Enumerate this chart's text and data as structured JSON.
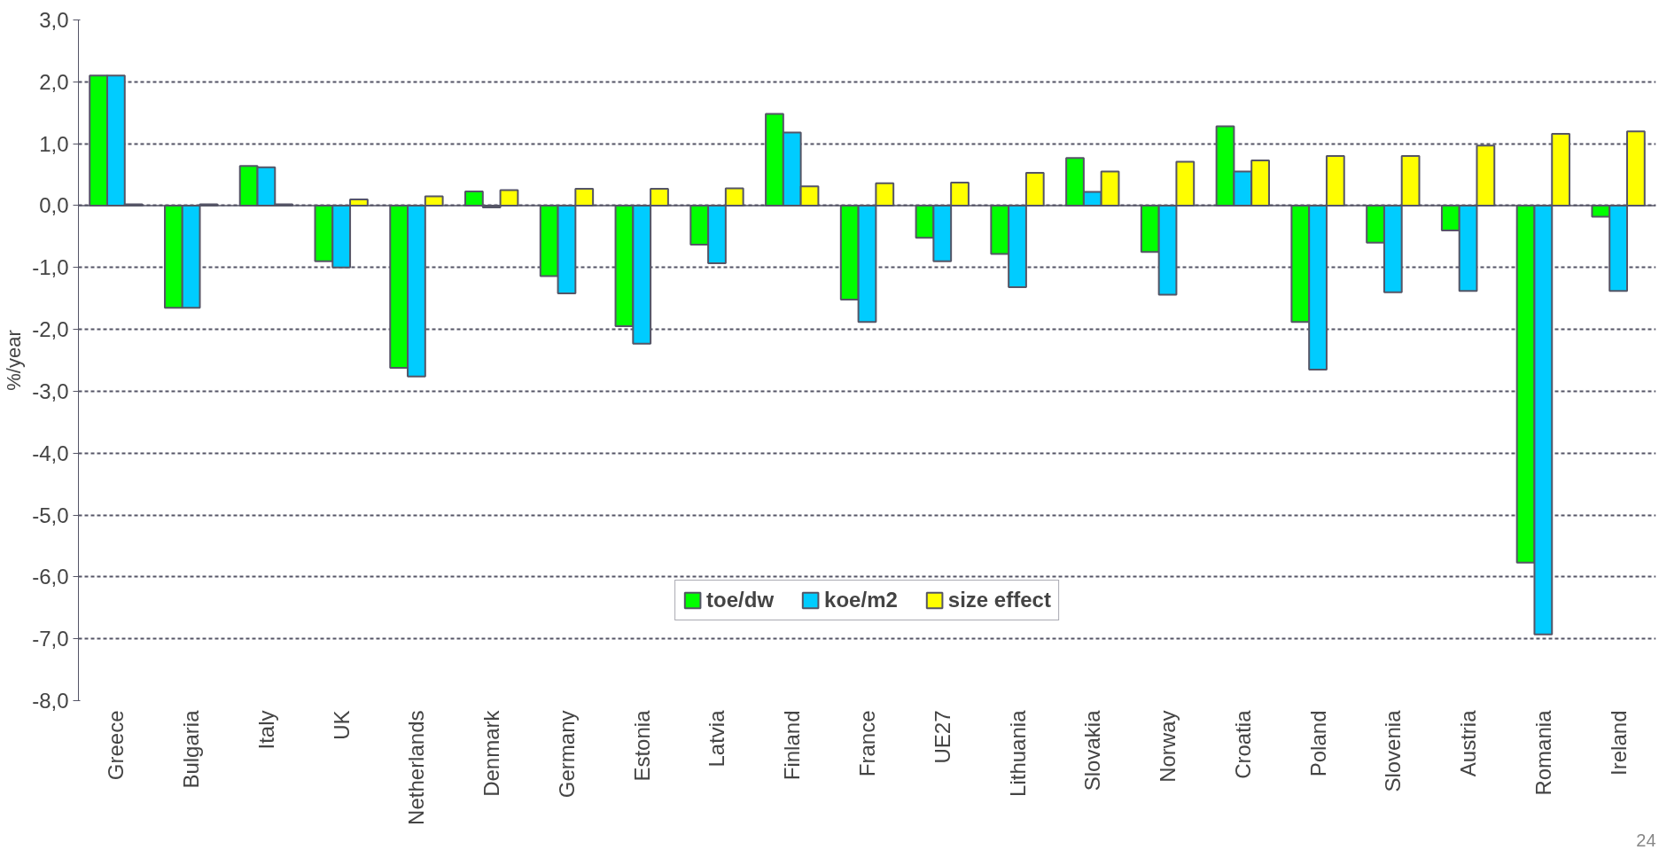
{
  "chart_data": {
    "type": "bar",
    "ylabel": "%/year",
    "categories": [
      "Greece",
      "Bulgaria",
      "Italy",
      "UK",
      "Netherlands",
      "Denmark",
      "Germany",
      "Estonia",
      "Latvia",
      "Finland",
      "France",
      "UE27",
      "Lithuania",
      "Slovakia",
      "Norway",
      "Croatia",
      "Poland",
      "Slovenia",
      "Austria",
      "Romania",
      "Ireland"
    ],
    "series": [
      {
        "name": "toe/dw",
        "color": "#00ff00",
        "values": [
          2.1,
          -1.65,
          0.64,
          -0.9,
          -2.62,
          0.23,
          -1.14,
          -1.95,
          -0.63,
          1.48,
          -1.52,
          -0.52,
          -0.78,
          0.77,
          -0.75,
          1.28,
          -1.88,
          -0.6,
          -0.4,
          -5.77,
          -0.18
        ]
      },
      {
        "name": "koe/m2",
        "color": "#00ccff",
        "values": [
          2.1,
          -1.65,
          0.62,
          -1.0,
          -2.76,
          -0.03,
          -1.42,
          -2.23,
          -0.93,
          1.18,
          -1.88,
          -0.9,
          -1.32,
          0.22,
          -1.44,
          0.55,
          -2.65,
          -1.4,
          -1.38,
          -6.93,
          -1.38
        ]
      },
      {
        "name": "size effect",
        "color": "#ffff00",
        "values": [
          0.02,
          0.02,
          0.02,
          0.1,
          0.15,
          0.25,
          0.27,
          0.27,
          0.28,
          0.31,
          0.36,
          0.37,
          0.53,
          0.55,
          0.71,
          0.73,
          0.8,
          0.8,
          0.97,
          1.16,
          1.2
        ]
      }
    ],
    "ylim": [
      -8,
      3
    ],
    "yticks": [
      {
        "value": 3,
        "label": "3,0"
      },
      {
        "value": 2,
        "label": "2,0"
      },
      {
        "value": 1,
        "label": "1,0"
      },
      {
        "value": 0,
        "label": "0,0"
      },
      {
        "value": -1,
        "label": "-1,0"
      },
      {
        "value": -2,
        "label": "-2,0"
      },
      {
        "value": -3,
        "label": "-3,0"
      },
      {
        "value": -4,
        "label": "-4,0"
      },
      {
        "value": -5,
        "label": "-5,0"
      },
      {
        "value": -6,
        "label": "-6,0"
      },
      {
        "value": -7,
        "label": "-7,0"
      },
      {
        "value": -8,
        "label": "-8,0"
      }
    ],
    "grid": "y",
    "legend": "bottom",
    "annotations": [
      "24"
    ]
  }
}
